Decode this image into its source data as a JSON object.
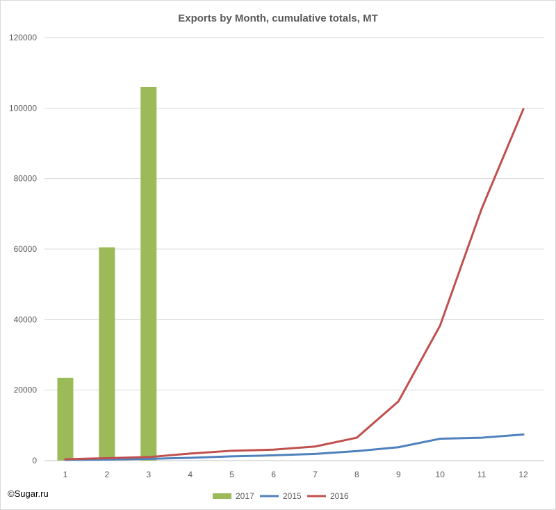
{
  "watermark": "©Sugar.ru",
  "chart_data": {
    "type": "bar",
    "title": "Exports by Month, cumulative totals, MT",
    "xlabel": "",
    "ylabel": "",
    "categories": [
      "1",
      "2",
      "3",
      "4",
      "5",
      "6",
      "7",
      "8",
      "9",
      "10",
      "11",
      "12"
    ],
    "ylim": [
      0,
      120000
    ],
    "yticks": [
      0,
      20000,
      40000,
      60000,
      80000,
      100000,
      120000
    ],
    "grid": true,
    "legend_position": "bottom",
    "series": [
      {
        "name": "2017",
        "type": "bar",
        "color": "#9bbb59",
        "values": [
          23500,
          60500,
          106000,
          null,
          null,
          null,
          null,
          null,
          null,
          null,
          null,
          null
        ]
      },
      {
        "name": "2015",
        "type": "line",
        "color": "#4f81bd",
        "values": [
          200,
          300,
          500,
          800,
          1200,
          1500,
          1900,
          2700,
          3800,
          6200,
          6500,
          7400
        ]
      },
      {
        "name": "2016",
        "type": "line",
        "color": "#c0504d",
        "values": [
          400,
          700,
          1000,
          2000,
          2800,
          3100,
          4000,
          6500,
          16800,
          38300,
          71500,
          99700
        ]
      }
    ]
  }
}
